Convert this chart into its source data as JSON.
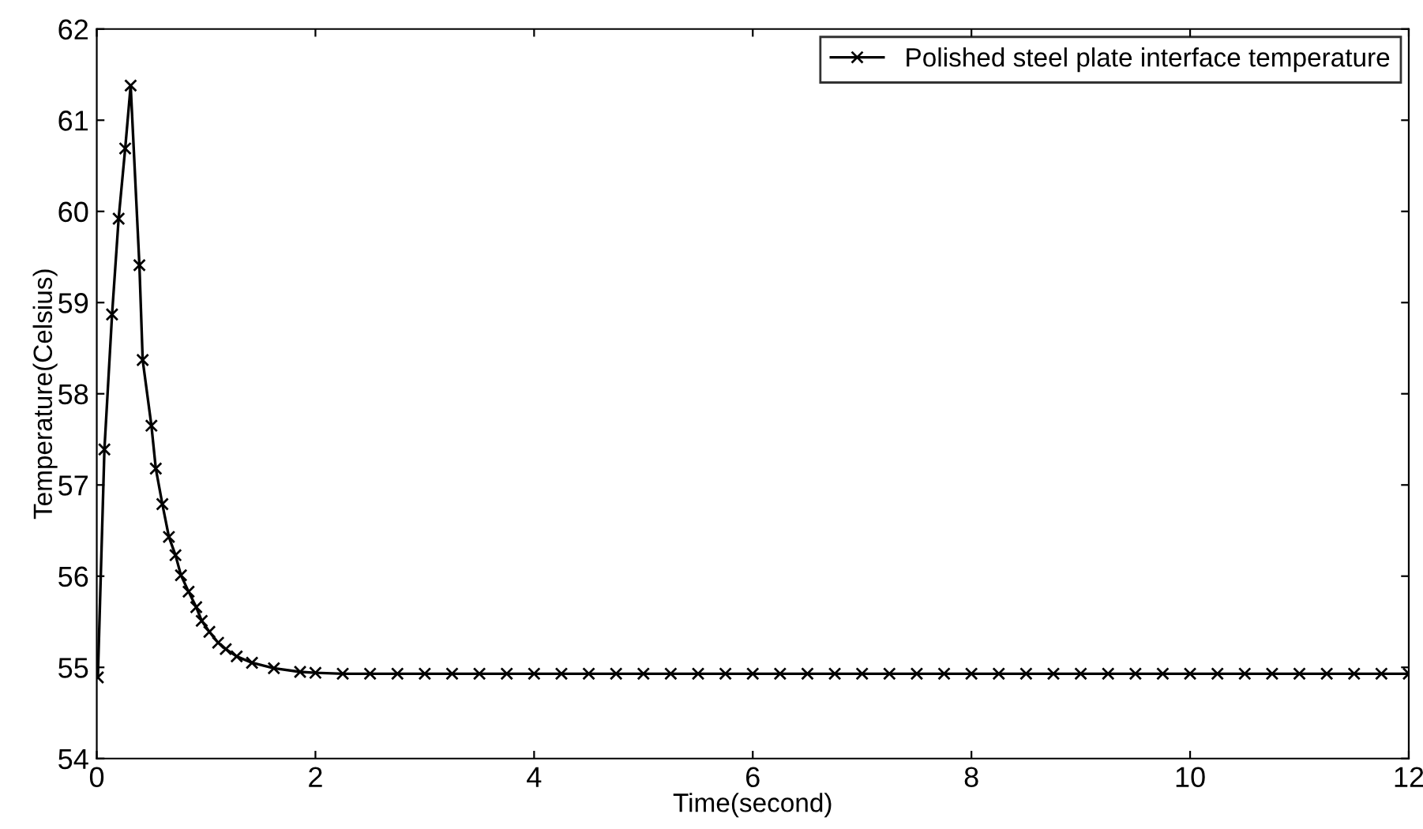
{
  "chart_data": {
    "type": "line",
    "xlabel": "Time(second)",
    "ylabel": "Temperature(Celsius)",
    "xlim": [
      0,
      12
    ],
    "ylim": [
      54,
      62
    ],
    "xticks": [
      0,
      2,
      4,
      6,
      8,
      10,
      12
    ],
    "yticks": [
      54,
      55,
      56,
      57,
      58,
      59,
      60,
      61,
      62
    ],
    "grid": false,
    "legend": "top right",
    "marker": "cross",
    "line_style": "solid",
    "series": [
      {
        "name": "Polished steel plate interface temperature",
        "color": "#000000",
        "x": [
          0.01,
          0.07,
          0.14,
          0.2,
          0.26,
          0.31,
          0.39,
          0.42,
          0.5,
          0.54,
          0.6,
          0.66,
          0.72,
          0.77,
          0.84,
          0.91,
          0.96,
          1.03,
          1.11,
          1.18,
          1.28,
          1.42,
          1.62,
          1.86,
          2.0,
          2.25,
          2.5,
          2.75,
          3.0,
          3.25,
          3.5,
          3.75,
          4.0,
          4.25,
          4.5,
          4.75,
          5.0,
          5.25,
          5.5,
          5.75,
          6.0,
          6.25,
          6.5,
          6.75,
          7.0,
          7.25,
          7.5,
          7.75,
          8.0,
          8.25,
          8.5,
          8.75,
          9.0,
          9.25,
          9.5,
          9.75,
          10.0,
          10.25,
          10.5,
          10.75,
          11.0,
          11.25,
          11.5,
          11.75,
          12.0
        ],
        "values": [
          54.89,
          57.39,
          58.87,
          59.92,
          60.69,
          61.38,
          59.41,
          58.37,
          57.65,
          57.18,
          56.79,
          56.43,
          56.23,
          56.01,
          55.83,
          55.66,
          55.51,
          55.39,
          55.27,
          55.2,
          55.12,
          55.05,
          54.99,
          54.95,
          54.94,
          54.93,
          54.93,
          54.93,
          54.93,
          54.93,
          54.93,
          54.93,
          54.93,
          54.93,
          54.93,
          54.93,
          54.93,
          54.93,
          54.93,
          54.93,
          54.93,
          54.93,
          54.93,
          54.93,
          54.93,
          54.93,
          54.93,
          54.93,
          54.93,
          54.93,
          54.93,
          54.93,
          54.93,
          54.93,
          54.93,
          54.93,
          54.93,
          54.93,
          54.93,
          54.93,
          54.93,
          54.93,
          54.93,
          54.93,
          54.93
        ]
      }
    ]
  }
}
